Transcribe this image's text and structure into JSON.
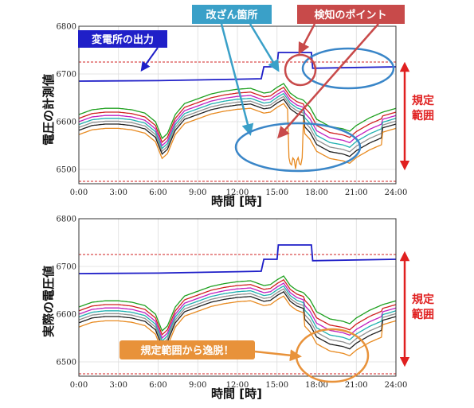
{
  "chart_data": [
    {
      "type": "line",
      "ylabel": "電圧の計測値",
      "xlabel": "時間 [時]",
      "x_ticks": [
        "0:00",
        "3:00",
        "6:00",
        "9:00",
        "12:00",
        "15:00",
        "18:00",
        "21:00",
        "24:00"
      ],
      "y_ticks": [
        6500,
        6600,
        6700,
        6800
      ],
      "xlim": [
        0,
        24
      ],
      "ylim": [
        6470,
        6800
      ],
      "limits": [
        6725,
        6475
      ],
      "grid": true,
      "substation_series": {
        "color": "#1f1fc8",
        "points": [
          [
            0,
            6685
          ],
          [
            6,
            6686
          ],
          [
            12,
            6689
          ],
          [
            13.8,
            6690
          ],
          [
            14,
            6715
          ],
          [
            15,
            6715
          ],
          [
            15.1,
            6745
          ],
          [
            17.6,
            6745
          ],
          [
            17.7,
            6712
          ],
          [
            24,
            6715
          ]
        ]
      },
      "annotations": [
        {
          "text": "変電所の出力",
          "color": "#1f1fc8"
        },
        {
          "text": "改ざん箇所",
          "color": "#3aa0c8"
        },
        {
          "text": "検知のポイント",
          "color": "#c84a4a"
        }
      ],
      "range_label": [
        "規定",
        "範囲"
      ],
      "range_color": "#e02020"
    },
    {
      "type": "line",
      "ylabel": "実際の電圧値",
      "xlabel": "時間 [時]",
      "x_ticks": [
        "0:00",
        "3:00",
        "6:00",
        "9:00",
        "12:00",
        "15:00",
        "18:00",
        "21:00",
        "24:00"
      ],
      "y_ticks": [
        6500,
        6600,
        6700,
        6800
      ],
      "xlim": [
        0,
        24
      ],
      "ylim": [
        6470,
        6800
      ],
      "limits": [
        6725,
        6475
      ],
      "grid": true,
      "substation_series": {
        "color": "#1f1fc8",
        "points": [
          [
            0,
            6685
          ],
          [
            6,
            6686
          ],
          [
            12,
            6689
          ],
          [
            13.8,
            6690
          ],
          [
            14,
            6715
          ],
          [
            15,
            6715
          ],
          [
            15.1,
            6745
          ],
          [
            17.6,
            6745
          ],
          [
            17.7,
            6712
          ],
          [
            24,
            6715
          ]
        ]
      },
      "annotations": [
        {
          "text": "規定範囲から逸脱！",
          "color": "#e8923a"
        }
      ],
      "range_label": [
        "規定",
        "範囲"
      ],
      "range_color": "#e02020"
    }
  ],
  "feeder_series_colors": [
    "#1fa01f",
    "#d02020",
    "#c020c0",
    "#20b0b0",
    "#909090",
    "#202020",
    "#e88a20"
  ]
}
